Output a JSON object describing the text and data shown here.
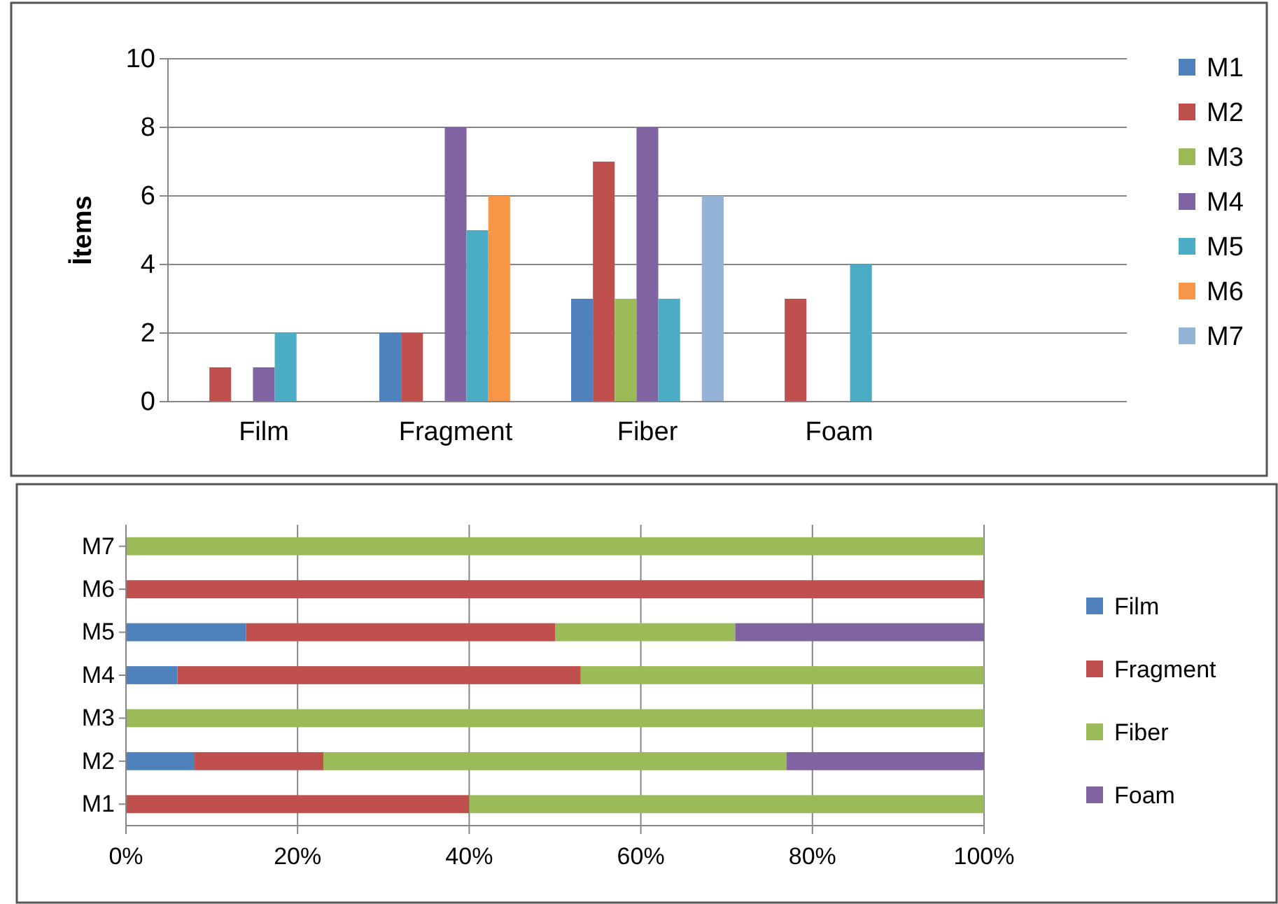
{
  "chart_data": [
    {
      "type": "bar",
      "ylabel": "İtems",
      "categories": [
        "Film",
        "Fragment",
        "Fiber",
        "Foam",
        null
      ],
      "series": [
        {
          "name": "M1",
          "color": "#4f81bd",
          "values": [
            0,
            2,
            3,
            0,
            null
          ]
        },
        {
          "name": "M2",
          "color": "#c0504d",
          "values": [
            1,
            2,
            7,
            3,
            null
          ]
        },
        {
          "name": "M3",
          "color": "#9bbb59",
          "values": [
            0,
            0,
            3,
            0,
            null
          ]
        },
        {
          "name": "M4",
          "color": "#8064a2",
          "values": [
            1,
            8,
            8,
            0,
            null
          ]
        },
        {
          "name": "M5",
          "color": "#4bacc6",
          "values": [
            2,
            5,
            3,
            4,
            null
          ]
        },
        {
          "name": "M6",
          "color": "#f79646",
          "values": [
            0,
            6,
            0,
            0,
            null
          ]
        },
        {
          "name": "M7",
          "color": "#95b3d7",
          "values": [
            0,
            0,
            6,
            0,
            null
          ]
        }
      ],
      "ylim": [
        0,
        10
      ],
      "yticks": [
        0,
        2,
        4,
        6,
        8,
        10
      ],
      "grid": "y",
      "legend": "right"
    },
    {
      "type": "bar",
      "orientation": "horizontal",
      "stacked": true,
      "categories": [
        "M7",
        "M6",
        "M5",
        "M4",
        "M3",
        "M2",
        "M1"
      ],
      "series": [
        {
          "name": "Film",
          "color": "#4f81bd",
          "values": [
            0,
            0,
            14,
            6,
            0,
            8,
            0
          ]
        },
        {
          "name": "Fragment",
          "color": "#c0504d",
          "values": [
            0,
            100,
            36,
            47,
            0,
            15,
            40
          ]
        },
        {
          "name": "Fiber",
          "color": "#9bbb59",
          "values": [
            100,
            0,
            21,
            47,
            100,
            54,
            60
          ]
        },
        {
          "name": "Foam",
          "color": "#8064a2",
          "values": [
            0,
            0,
            29,
            0,
            0,
            23,
            0
          ]
        }
      ],
      "xlim": [
        0,
        100
      ],
      "xticks": [
        {
          "value": 0,
          "label": "0%"
        },
        {
          "value": 20,
          "label": "20%"
        },
        {
          "value": 40,
          "label": "40%"
        },
        {
          "value": 60,
          "label": "60%"
        },
        {
          "value": 80,
          "label": "80%"
        },
        {
          "value": 100,
          "label": "100%"
        }
      ],
      "grid": "x",
      "legend": "right"
    }
  ]
}
